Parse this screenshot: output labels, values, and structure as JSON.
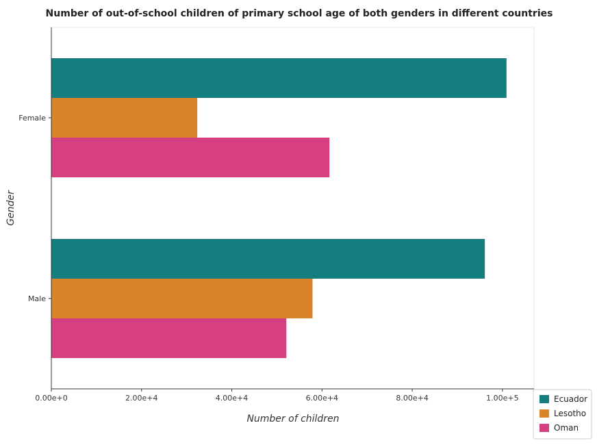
{
  "chart_data": {
    "type": "bar",
    "orientation": "horizontal",
    "title": "Number of out-of-school children of primary school age of both genders in different countries",
    "xlabel": "Number of children",
    "ylabel": "Gender",
    "categories": [
      "Female",
      "Male"
    ],
    "series": [
      {
        "name": "Ecuador",
        "color": "#137e7d",
        "values": [
          100900,
          96100
        ]
      },
      {
        "name": "Lesotho",
        "color": "#d9832a",
        "values": [
          32350,
          57900
        ]
      },
      {
        "name": "Oman",
        "color": "#d63f81",
        "values": [
          61650,
          52100
        ]
      }
    ],
    "xlim": [
      0,
      107000
    ],
    "xticks": [
      0,
      20000,
      40000,
      60000,
      80000,
      100000
    ],
    "xtick_labels": [
      "0.00e+0",
      "2.00e+4",
      "4.00e+4",
      "6.00e+4",
      "8.00e+4",
      "1.00e+5"
    ],
    "grid": false,
    "legend_position": "bottom-right"
  }
}
